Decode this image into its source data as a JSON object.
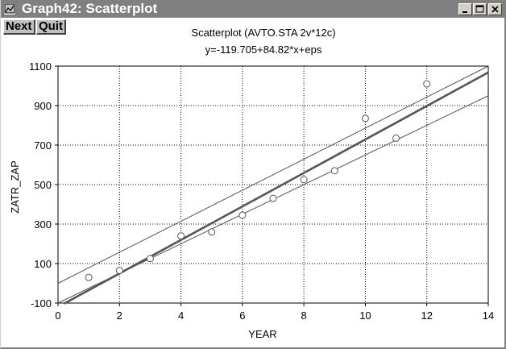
{
  "window": {
    "title": "Graph42: Scatterplot",
    "controls": [
      "minimize",
      "maximize",
      "close"
    ]
  },
  "toolbar": {
    "next_label": "Next",
    "quit_label": "Quit"
  },
  "colors": {
    "titlebar": "#808080",
    "marks": "#555555",
    "grid": "#000000"
  },
  "chart_data": {
    "type": "scatter",
    "title": "Scatterplot (AVTO.STA 2v*12c)",
    "subtitle": "y=-119.705+84.82*x+eps",
    "xlabel": "YEAR",
    "ylabel": "ZATR_ZAP",
    "xlim": [
      0,
      14
    ],
    "ylim": [
      -100,
      1100
    ],
    "x_ticks": [
      0,
      2,
      4,
      6,
      8,
      10,
      12,
      14
    ],
    "y_ticks": [
      -100,
      100,
      300,
      500,
      700,
      900,
      1100
    ],
    "grid": true,
    "grid_style": "dotted",
    "points": {
      "x": [
        1,
        2,
        3,
        4,
        5,
        6,
        7,
        8,
        9,
        10,
        11,
        12
      ],
      "y": [
        30,
        65,
        125,
        240,
        260,
        345,
        430,
        525,
        570,
        835,
        735,
        1010
      ]
    },
    "regression": {
      "intercept": -119.705,
      "slope": 84.82,
      "x_range": [
        0.2,
        14
      ]
    },
    "confidence_band": {
      "upper": [
        [
          0,
          0
        ],
        [
          14,
          1100
        ]
      ],
      "lower": [
        [
          0,
          -100
        ],
        [
          14,
          950
        ]
      ]
    }
  }
}
